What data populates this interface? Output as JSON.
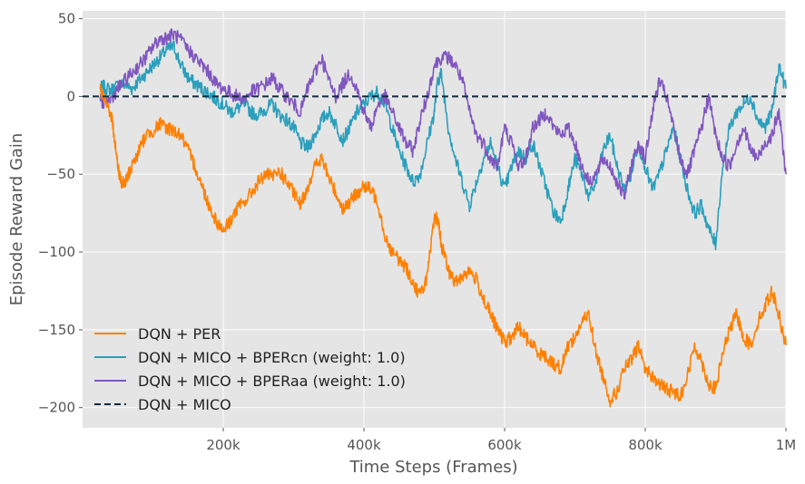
{
  "chart_data": {
    "type": "line",
    "xlabel": "Time Steps (Frames)",
    "ylabel": "Episode Reward Gain",
    "xlim": [
      0,
      1000000
    ],
    "ylim": [
      -213,
      55
    ],
    "xticks": [
      {
        "value": 200000,
        "label": "200k"
      },
      {
        "value": 400000,
        "label": "400k"
      },
      {
        "value": 600000,
        "label": "600k"
      },
      {
        "value": 800000,
        "label": "800k"
      },
      {
        "value": 1000000,
        "label": "1M"
      }
    ],
    "yticks": [
      {
        "value": 50,
        "label": "50"
      },
      {
        "value": 0,
        "label": "0"
      },
      {
        "value": -50,
        "label": "−50"
      },
      {
        "value": -100,
        "label": "−100"
      },
      {
        "value": -150,
        "label": "−150"
      },
      {
        "value": -200,
        "label": "−200"
      }
    ],
    "grid": true,
    "legend_position": "bottom-left",
    "series": [
      {
        "name": "DQN + PER",
        "color": "#ff8000",
        "dash": "solid",
        "x": [
          25000,
          30000,
          40000,
          45000,
          50000,
          55000,
          60000,
          65000,
          70000,
          80000,
          90000,
          100000,
          110000,
          120000,
          130000,
          140000,
          150000,
          160000,
          170000,
          180000,
          190000,
          200000,
          210000,
          220000,
          230000,
          240000,
          250000,
          260000,
          270000,
          280000,
          290000,
          300000,
          310000,
          320000,
          330000,
          340000,
          350000,
          360000,
          370000,
          380000,
          390000,
          400000,
          410000,
          420000,
          430000,
          440000,
          450000,
          460000,
          470000,
          480000,
          490000,
          500000,
          505000,
          510000,
          520000,
          530000,
          540000,
          550000,
          560000,
          570000,
          580000,
          590000,
          600000,
          610000,
          620000,
          630000,
          640000,
          650000,
          660000,
          670000,
          680000,
          690000,
          700000,
          710000,
          720000,
          730000,
          740000,
          750000,
          760000,
          770000,
          780000,
          790000,
          800000,
          810000,
          820000,
          830000,
          840000,
          850000,
          860000,
          870000,
          880000,
          890000,
          900000,
          910000,
          920000,
          930000,
          940000,
          950000,
          960000,
          970000,
          980000,
          990000,
          1000000
        ],
        "y": [
          5,
          -2,
          -10,
          -25,
          -45,
          -55,
          -57,
          -50,
          -45,
          -35,
          -25,
          -22,
          -18,
          -20,
          -22,
          -25,
          -35,
          -45,
          -58,
          -70,
          -80,
          -86,
          -80,
          -72,
          -68,
          -62,
          -55,
          -50,
          -52,
          -48,
          -55,
          -62,
          -70,
          -58,
          -45,
          -40,
          -52,
          -62,
          -72,
          -68,
          -62,
          -58,
          -60,
          -68,
          -90,
          -100,
          -105,
          -110,
          -120,
          -128,
          -115,
          -80,
          -78,
          -95,
          -112,
          -120,
          -115,
          -112,
          -118,
          -130,
          -140,
          -150,
          -158,
          -155,
          -148,
          -155,
          -160,
          -165,
          -168,
          -172,
          -175,
          -160,
          -155,
          -145,
          -140,
          -165,
          -180,
          -195,
          -190,
          -175,
          -170,
          -160,
          -175,
          -180,
          -185,
          -188,
          -190,
          -192,
          -180,
          -160,
          -170,
          -185,
          -188,
          -165,
          -150,
          -140,
          -155,
          -160,
          -145,
          -135,
          -125,
          -140,
          -160
        ]
      },
      {
        "name": "DQN + MICO + BPERcn (weight: 1.0)",
        "color": "#2a9fbc",
        "dash": "solid",
        "x": [
          25000,
          30000,
          40000,
          50000,
          60000,
          70000,
          80000,
          90000,
          100000,
          110000,
          120000,
          130000,
          140000,
          150000,
          160000,
          170000,
          180000,
          190000,
          200000,
          210000,
          220000,
          230000,
          240000,
          250000,
          260000,
          270000,
          280000,
          290000,
          300000,
          310000,
          320000,
          330000,
          340000,
          350000,
          360000,
          370000,
          380000,
          390000,
          400000,
          410000,
          420000,
          430000,
          440000,
          450000,
          460000,
          470000,
          480000,
          490000,
          500000,
          505000,
          510000,
          520000,
          530000,
          540000,
          550000,
          560000,
          570000,
          580000,
          590000,
          600000,
          610000,
          620000,
          630000,
          640000,
          650000,
          660000,
          670000,
          680000,
          690000,
          700000,
          710000,
          720000,
          730000,
          740000,
          750000,
          760000,
          770000,
          780000,
          790000,
          800000,
          810000,
          820000,
          830000,
          840000,
          850000,
          860000,
          870000,
          880000,
          890000,
          900000,
          910000,
          920000,
          930000,
          940000,
          950000,
          960000,
          970000,
          980000,
          990000,
          1000000
        ],
        "y": [
          5,
          6,
          4,
          7,
          8,
          5,
          10,
          15,
          20,
          25,
          30,
          32,
          20,
          12,
          8,
          5,
          2,
          -2,
          -5,
          -10,
          -8,
          -5,
          -10,
          -12,
          -8,
          -5,
          -12,
          -15,
          -20,
          -30,
          -33,
          -25,
          -15,
          -10,
          -18,
          -28,
          -20,
          -10,
          -5,
          0,
          3,
          -5,
          -20,
          -35,
          -45,
          -55,
          -50,
          -30,
          -10,
          10,
          15,
          -20,
          -40,
          -55,
          -70,
          -55,
          -40,
          -30,
          -45,
          -60,
          -45,
          -35,
          -40,
          -30,
          -45,
          -60,
          -75,
          -80,
          -60,
          -40,
          -50,
          -65,
          -55,
          -35,
          -25,
          -45,
          -60,
          -50,
          -30,
          -45,
          -60,
          -50,
          -35,
          -20,
          -40,
          -60,
          -75,
          -70,
          -85,
          -95,
          -45,
          -20,
          -10,
          -5,
          0,
          -15,
          -20,
          -10,
          20,
          5
        ]
      },
      {
        "name": "DQN + MICO + BPERaa (weight: 1.0)",
        "color": "#8056bf",
        "dash": "solid",
        "x": [
          25000,
          30000,
          40000,
          50000,
          60000,
          70000,
          80000,
          90000,
          100000,
          110000,
          120000,
          130000,
          140000,
          150000,
          160000,
          170000,
          180000,
          190000,
          200000,
          210000,
          220000,
          230000,
          240000,
          250000,
          260000,
          270000,
          280000,
          290000,
          300000,
          310000,
          320000,
          330000,
          340000,
          350000,
          360000,
          370000,
          380000,
          390000,
          400000,
          410000,
          420000,
          430000,
          440000,
          450000,
          460000,
          470000,
          480000,
          490000,
          500000,
          510000,
          520000,
          530000,
          540000,
          550000,
          560000,
          570000,
          580000,
          590000,
          600000,
          610000,
          620000,
          630000,
          640000,
          650000,
          660000,
          670000,
          680000,
          690000,
          700000,
          710000,
          720000,
          730000,
          740000,
          750000,
          760000,
          770000,
          780000,
          790000,
          800000,
          810000,
          820000,
          830000,
          840000,
          850000,
          860000,
          870000,
          880000,
          890000,
          900000,
          910000,
          920000,
          930000,
          940000,
          950000,
          960000,
          970000,
          980000,
          990000,
          1000000
        ],
        "y": [
          0,
          -5,
          -2,
          5,
          10,
          15,
          20,
          25,
          32,
          37,
          38,
          40,
          36,
          30,
          25,
          20,
          15,
          8,
          5,
          2,
          0,
          -2,
          3,
          5,
          8,
          12,
          5,
          0,
          -5,
          -10,
          5,
          15,
          25,
          10,
          0,
          8,
          15,
          5,
          -10,
          -20,
          -5,
          0,
          -10,
          -20,
          -30,
          -35,
          -15,
          0,
          20,
          25,
          25,
          20,
          10,
          -10,
          -25,
          -30,
          -40,
          -45,
          -20,
          -30,
          -45,
          -40,
          -20,
          -15,
          -10,
          -20,
          -25,
          -20,
          -30,
          -45,
          -55,
          -50,
          -40,
          -45,
          -55,
          -65,
          -45,
          -30,
          -40,
          -10,
          10,
          0,
          -20,
          -40,
          -50,
          -35,
          -20,
          0,
          -25,
          -40,
          -45,
          -30,
          -20,
          -35,
          -40,
          -30,
          -25,
          -10,
          -50
        ]
      },
      {
        "name": "DQN + MICO",
        "color": "#102a40",
        "dash": "dashed",
        "x": [
          0,
          1000000
        ],
        "y": [
          0,
          0
        ]
      }
    ]
  }
}
